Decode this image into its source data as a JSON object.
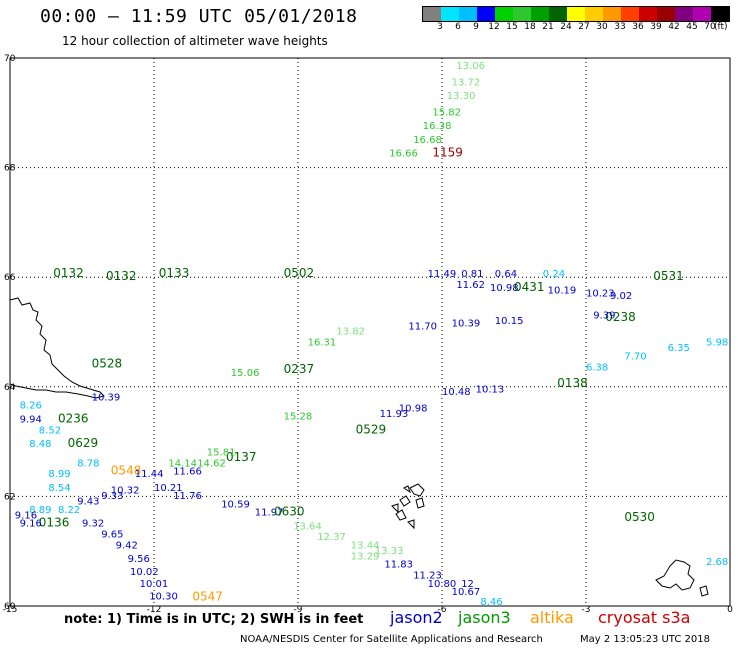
{
  "header": {
    "title": "00:00 — 11:59 UTC 05/01/2018",
    "subtitle": "12 hour collection of altimeter wave heights"
  },
  "colorbar": {
    "colors": [
      "#808080",
      "#00e5ff",
      "#00bfff",
      "#0000ff",
      "#00d000",
      "#2ec82e",
      "#00a000",
      "#006400",
      "#ffff00",
      "#ffcc00",
      "#ff9900",
      "#ff4000",
      "#cc0000",
      "#990000",
      "#800080",
      "#b000b0",
      "#000000"
    ],
    "labels": [
      "3",
      "6",
      "9",
      "12",
      "15",
      "18",
      "21",
      "24",
      "27",
      "30",
      "33",
      "36",
      "39",
      "42",
      "45",
      "70"
    ],
    "unit": "(ft)"
  },
  "map": {
    "lon_ticks": [
      "-15",
      "-12",
      "-9",
      "-6",
      "-3",
      "0"
    ],
    "lat_ticks": [
      "70",
      "68",
      "66",
      "64",
      "62",
      "60"
    ]
  },
  "footer": {
    "note": "note:  1) Time is in UTC; 2) SWH is in feet",
    "credit": "NOAA/NESDIS Center for Satellite Applications and Research",
    "timestamp": "May  2 13:05:23 UTC 2018"
  },
  "legend": [
    {
      "name": "jason2",
      "color": "#0000cc"
    },
    {
      "name": "jason3",
      "color": "#009900"
    },
    {
      "name": "altika",
      "color": "#ff9900"
    },
    {
      "name": "cryosat s3a",
      "color": "#cc0000"
    }
  ],
  "labels": [
    {
      "text": "13.06",
      "lon": -5.7,
      "lat": 69.8,
      "color": "#7fe07f"
    },
    {
      "text": "13.72",
      "lon": -5.8,
      "lat": 69.5,
      "color": "#7fe07f"
    },
    {
      "text": "13.30",
      "lon": -5.9,
      "lat": 69.25,
      "color": "#7fe07f"
    },
    {
      "text": "15.82",
      "lon": -6.2,
      "lat": 68.95,
      "color": "#2ec82e"
    },
    {
      "text": "16.38",
      "lon": -6.4,
      "lat": 68.7,
      "color": "#2ec82e"
    },
    {
      "text": "16.68",
      "lon": -6.6,
      "lat": 68.45,
      "color": "#2ec82e"
    },
    {
      "text": "16.66",
      "lon": -7.1,
      "lat": 68.2,
      "color": "#2ec82e"
    },
    {
      "text": "1159",
      "lon": -6.2,
      "lat": 68.2,
      "color": "#990000"
    },
    {
      "text": "0132",
      "lon": -14.1,
      "lat": 66.0,
      "color": "#006400"
    },
    {
      "text": "0132",
      "lon": -13.0,
      "lat": 65.95,
      "color": "#006400"
    },
    {
      "text": "0133",
      "lon": -11.9,
      "lat": 66.0,
      "color": "#006400"
    },
    {
      "text": "0502",
      "lon": -9.3,
      "lat": 66.0,
      "color": "#006400"
    },
    {
      "text": "11.49",
      "lon": -6.3,
      "lat": 66.0,
      "color": "#0000cc"
    },
    {
      "text": "0.81",
      "lon": -5.6,
      "lat": 66.0,
      "color": "#0000cc"
    },
    {
      "text": "0.64",
      "lon": -4.9,
      "lat": 66.0,
      "color": "#0000cc"
    },
    {
      "text": "0.24",
      "lon": -3.9,
      "lat": 66.0,
      "color": "#00bfff"
    },
    {
      "text": "0531",
      "lon": -1.6,
      "lat": 65.95,
      "color": "#006400"
    },
    {
      "text": "11.62",
      "lon": -5.7,
      "lat": 65.8,
      "color": "#0000cc"
    },
    {
      "text": "10.98",
      "lon": -5.0,
      "lat": 65.75,
      "color": "#0000cc"
    },
    {
      "text": "0431",
      "lon": -4.5,
      "lat": 65.75,
      "color": "#006400"
    },
    {
      "text": "10.19",
      "lon": -3.8,
      "lat": 65.7,
      "color": "#0000cc"
    },
    {
      "text": "10.23",
      "lon": -3.0,
      "lat": 65.65,
      "color": "#0000cc"
    },
    {
      "text": "9.02",
      "lon": -2.5,
      "lat": 65.6,
      "color": "#0000cc"
    },
    {
      "text": "0238",
      "lon": -2.6,
      "lat": 65.2,
      "color": "#006400"
    },
    {
      "text": "9.39",
      "lon": -2.85,
      "lat": 65.25,
      "color": "#0000cc"
    },
    {
      "text": "0528",
      "lon": -13.3,
      "lat": 64.35,
      "color": "#006400"
    },
    {
      "text": "0237",
      "lon": -9.3,
      "lat": 64.25,
      "color": "#006400"
    },
    {
      "text": "16.31",
      "lon": -8.8,
      "lat": 64.75,
      "color": "#2ec82e"
    },
    {
      "text": "13.82",
      "lon": -8.2,
      "lat": 64.95,
      "color": "#7fe07f"
    },
    {
      "text": "15.06",
      "lon": -10.4,
      "lat": 64.2,
      "color": "#2ec82e"
    },
    {
      "text": "11.70",
      "lon": -6.7,
      "lat": 65.05,
      "color": "#0000cc"
    },
    {
      "text": "10.39",
      "lon": -5.8,
      "lat": 65.1,
      "color": "#0000cc"
    },
    {
      "text": "10.15",
      "lon": -4.9,
      "lat": 65.15,
      "color": "#0000cc"
    },
    {
      "text": "10.48",
      "lon": -6.0,
      "lat": 63.85,
      "color": "#0000cc"
    },
    {
      "text": "10.13",
      "lon": -5.3,
      "lat": 63.9,
      "color": "#0000cc"
    },
    {
      "text": "0138",
      "lon": -3.6,
      "lat": 64.0,
      "color": "#006400"
    },
    {
      "text": "6.38",
      "lon": -3.0,
      "lat": 64.3,
      "color": "#00bfff"
    },
    {
      "text": "7.70",
      "lon": -2.2,
      "lat": 64.5,
      "color": "#00bfff"
    },
    {
      "text": "6.35",
      "lon": -1.3,
      "lat": 64.65,
      "color": "#00bfff"
    },
    {
      "text": "5.98",
      "lon": -0.5,
      "lat": 64.75,
      "color": "#00bfff"
    },
    {
      "text": "8.26",
      "lon": -14.8,
      "lat": 63.6,
      "color": "#00bfff"
    },
    {
      "text": "9.94",
      "lon": -14.8,
      "lat": 63.35,
      "color": "#0000cc"
    },
    {
      "text": "0236",
      "lon": -14.0,
      "lat": 63.35,
      "color": "#006400"
    },
    {
      "text": "8.52",
      "lon": -14.4,
      "lat": 63.15,
      "color": "#00bfff"
    },
    {
      "text": "8.48",
      "lon": -14.6,
      "lat": 62.9,
      "color": "#00bfff"
    },
    {
      "text": "0629",
      "lon": -13.8,
      "lat": 62.9,
      "color": "#006400"
    },
    {
      "text": "10.39",
      "lon": -13.3,
      "lat": 63.75,
      "color": "#0000cc"
    },
    {
      "text": "15.28",
      "lon": -9.3,
      "lat": 63.4,
      "color": "#2ec82e"
    },
    {
      "text": "11.93",
      "lon": -7.3,
      "lat": 63.45,
      "color": "#0000cc"
    },
    {
      "text": "10.98",
      "lon": -6.9,
      "lat": 63.55,
      "color": "#0000cc"
    },
    {
      "text": "0529",
      "lon": -7.8,
      "lat": 63.15,
      "color": "#006400"
    },
    {
      "text": "0137",
      "lon": -10.5,
      "lat": 62.65,
      "color": "#006400"
    },
    {
      "text": "15.81",
      "lon": -10.9,
      "lat": 62.75,
      "color": "#2ec82e"
    },
    {
      "text": "14.14",
      "lon": -11.7,
      "lat": 62.55,
      "color": "#2ec82e"
    },
    {
      "text": "14.62",
      "lon": -11.1,
      "lat": 62.55,
      "color": "#2ec82e"
    },
    {
      "text": "8.78",
      "lon": -13.6,
      "lat": 62.55,
      "color": "#00bfff"
    },
    {
      "text": "0548",
      "lon": -12.9,
      "lat": 62.4,
      "color": "#ff9900"
    },
    {
      "text": "8.99",
      "lon": -14.2,
      "lat": 62.35,
      "color": "#00bfff"
    },
    {
      "text": "8.54",
      "lon": -14.2,
      "lat": 62.1,
      "color": "#00bfff"
    },
    {
      "text": "11.44",
      "lon": -12.4,
      "lat": 62.35,
      "color": "#0000cc"
    },
    {
      "text": "11.66",
      "lon": -11.6,
      "lat": 62.4,
      "color": "#0000cc"
    },
    {
      "text": "10.32",
      "lon": -12.9,
      "lat": 62.05,
      "color": "#0000cc"
    },
    {
      "text": "10.21",
      "lon": -12.0,
      "lat": 62.1,
      "color": "#0000cc"
    },
    {
      "text": "11.76",
      "lon": -11.6,
      "lat": 61.95,
      "color": "#0000cc"
    },
    {
      "text": "9.43",
      "lon": -13.6,
      "lat": 61.85,
      "color": "#0000cc"
    },
    {
      "text": "9.33",
      "lon": -13.1,
      "lat": 61.95,
      "color": "#0000cc"
    },
    {
      "text": "8.22",
      "lon": -14.0,
      "lat": 61.7,
      "color": "#00bfff"
    },
    {
      "text": "8.89",
      "lon": -14.6,
      "lat": 61.7,
      "color": "#00bfff"
    },
    {
      "text": "9.16",
      "lon": -14.9,
      "lat": 61.6,
      "color": "#0000cc"
    },
    {
      "text": "0136",
      "lon": -14.4,
      "lat": 61.45,
      "color": "#006400"
    },
    {
      "text": "9.16",
      "lon": -14.8,
      "lat": 61.45,
      "color": "#0000cc"
    },
    {
      "text": "9.32",
      "lon": -13.5,
      "lat": 61.45,
      "color": "#0000cc"
    },
    {
      "text": "9.65",
      "lon": -13.1,
      "lat": 61.25,
      "color": "#0000cc"
    },
    {
      "text": "9.42",
      "lon": -12.8,
      "lat": 61.05,
      "color": "#0000cc"
    },
    {
      "text": "9.56",
      "lon": -12.55,
      "lat": 60.8,
      "color": "#0000cc"
    },
    {
      "text": "10.02",
      "lon": -12.5,
      "lat": 60.57,
      "color": "#0000cc"
    },
    {
      "text": "10.01",
      "lon": -12.3,
      "lat": 60.35,
      "color": "#0000cc"
    },
    {
      "text": "10.30",
      "lon": -12.1,
      "lat": 60.12,
      "color": "#0000cc"
    },
    {
      "text": "0547",
      "lon": -11.2,
      "lat": 60.1,
      "color": "#ff9900"
    },
    {
      "text": "10.59",
      "lon": -10.6,
      "lat": 61.8,
      "color": "#0000cc"
    },
    {
      "text": "11.97",
      "lon": -9.9,
      "lat": 61.65,
      "color": "#0000cc"
    },
    {
      "text": "0630",
      "lon": -9.5,
      "lat": 61.65,
      "color": "#006400"
    },
    {
      "text": "13.64",
      "lon": -9.1,
      "lat": 61.4,
      "color": "#7fe07f"
    },
    {
      "text": "12.37",
      "lon": -8.6,
      "lat": 61.2,
      "color": "#7fe07f"
    },
    {
      "text": "13.44",
      "lon": -7.9,
      "lat": 61.05,
      "color": "#7fe07f"
    },
    {
      "text": "13.33",
      "lon": -7.4,
      "lat": 60.95,
      "color": "#7fe07f"
    },
    {
      "text": "13.29",
      "lon": -7.9,
      "lat": 60.85,
      "color": "#7fe07f"
    },
    {
      "text": "11.83",
      "lon": -7.2,
      "lat": 60.7,
      "color": "#0000cc"
    },
    {
      "text": "11.23",
      "lon": -6.6,
      "lat": 60.5,
      "color": "#0000cc"
    },
    {
      "text": "10.80",
      "lon": -6.3,
      "lat": 60.35,
      "color": "#0000cc"
    },
    {
      "text": "12",
      "lon": -5.6,
      "lat": 60.35,
      "color": "#0000cc"
    },
    {
      "text": "10.67",
      "lon": -5.8,
      "lat": 60.2,
      "color": "#0000cc"
    },
    {
      "text": "8.46",
      "lon": -5.2,
      "lat": 60.02,
      "color": "#00bfff"
    },
    {
      "text": "0530",
      "lon": -2.2,
      "lat": 61.55,
      "color": "#006400"
    },
    {
      "text": "2.68",
      "lon": -0.5,
      "lat": 60.75,
      "color": "#00bfff"
    }
  ]
}
